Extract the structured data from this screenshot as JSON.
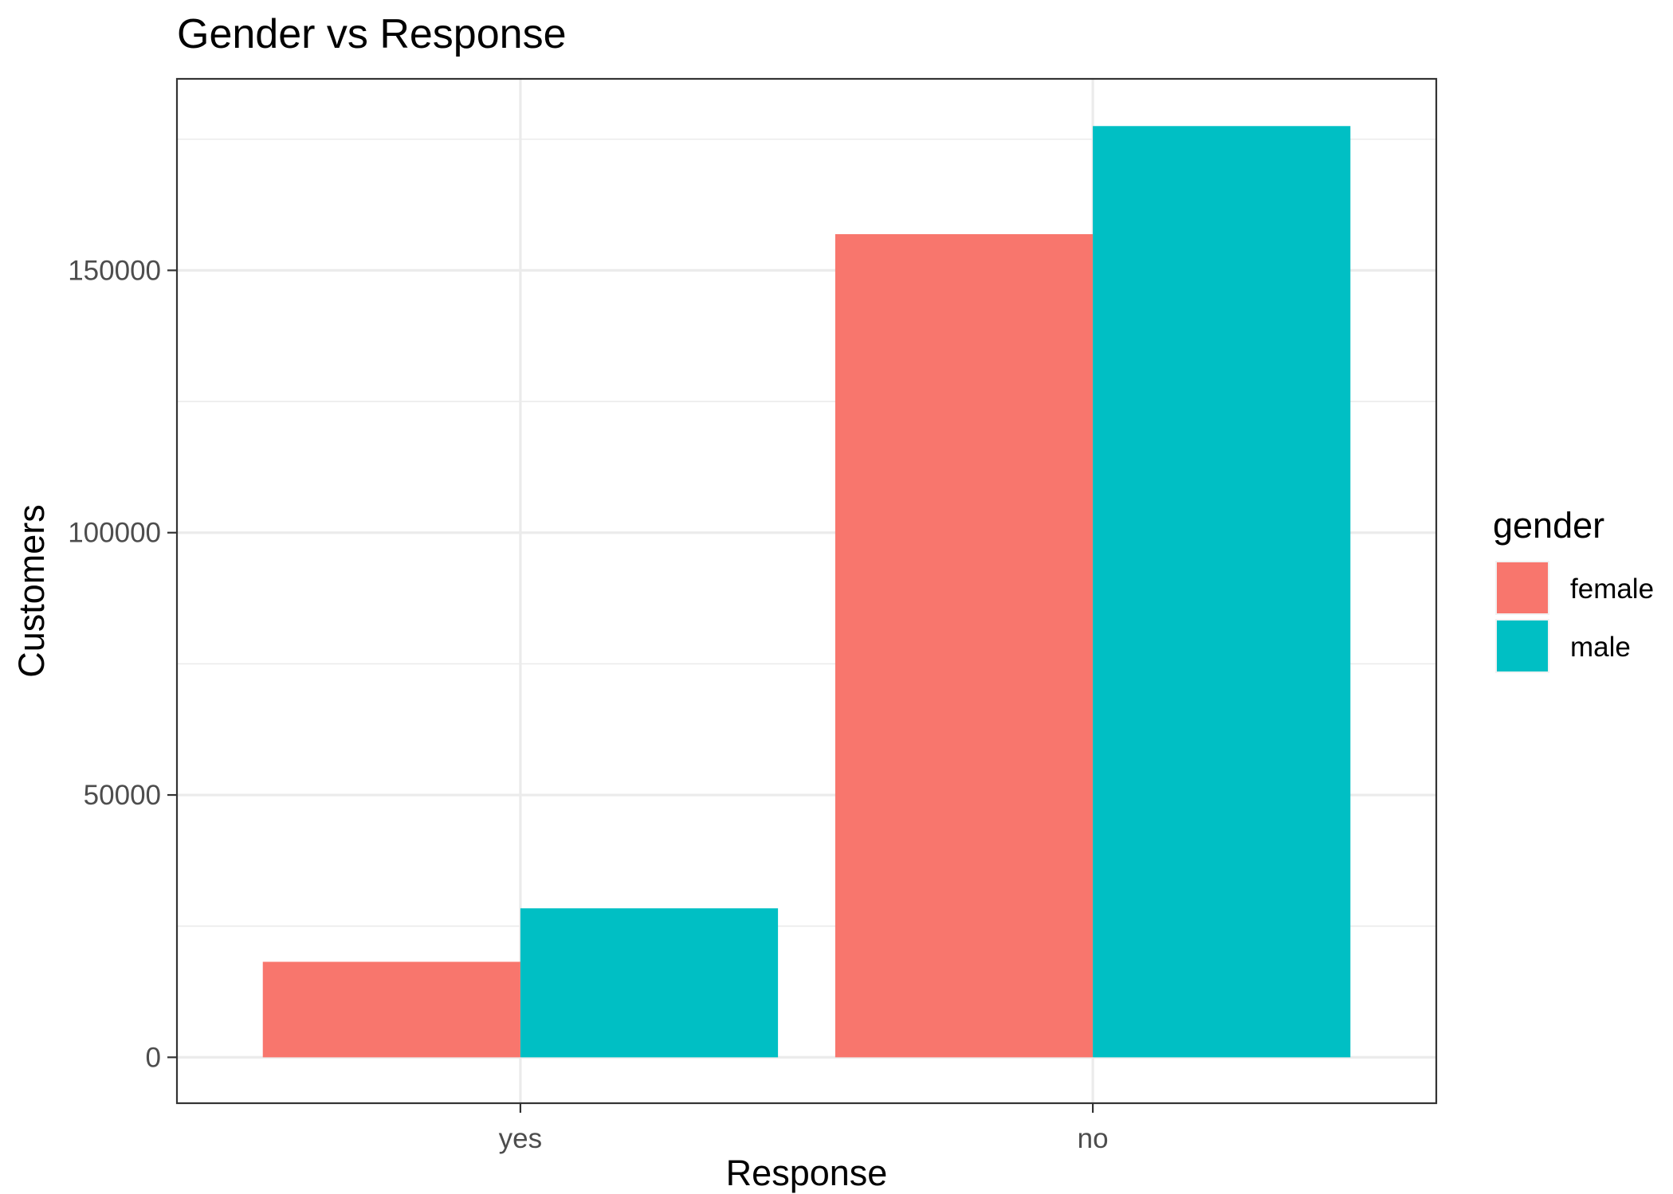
{
  "chart_data": {
    "type": "bar",
    "title": "Gender vs Response",
    "xlabel": "Response",
    "ylabel": "Customers",
    "categories": [
      "yes",
      "no"
    ],
    "series": [
      {
        "name": "female",
        "color": "#F8766D",
        "values": [
          18200,
          156900
        ]
      },
      {
        "name": "male",
        "color": "#00BFC4",
        "values": [
          28400,
          177500
        ]
      }
    ],
    "ylim": [
      -8750,
      186500
    ],
    "yticks": [
      0,
      50000,
      100000,
      150000
    ],
    "ytick_labels": [
      "0",
      "50000",
      "100000",
      "150000"
    ],
    "grid": true,
    "legend": {
      "title": "gender",
      "placement": "right"
    }
  }
}
